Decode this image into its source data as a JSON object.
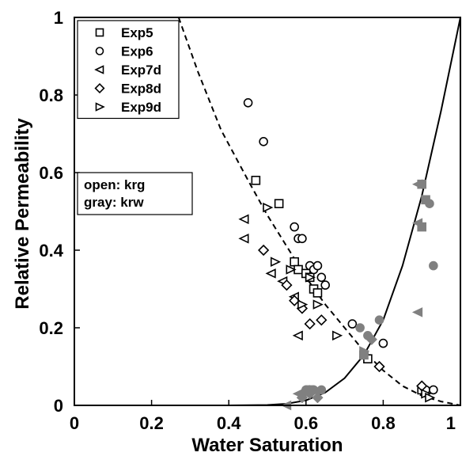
{
  "chart_data": {
    "type": "scatter",
    "xlabel": "Water Saturation",
    "ylabel": "Relative Permeability",
    "xlim": [
      0,
      1
    ],
    "ylim": [
      0,
      1
    ],
    "xticks": [
      "0",
      "0.2",
      "0.4",
      "0.6",
      "0.8",
      "1"
    ],
    "yticks": [
      "0",
      "0.2",
      "0.4",
      "0.6",
      "0.8",
      "1"
    ],
    "xtick_values": [
      0,
      0.2,
      0.4,
      0.6,
      0.8,
      1
    ],
    "ytick_values": [
      0,
      0.2,
      0.4,
      0.6,
      0.8,
      1
    ],
    "grid": false,
    "legend_position": "top-left",
    "colors": {
      "open": "#000000",
      "gray": "#808080",
      "axis": "#000000"
    },
    "notes": [
      "open: krg",
      "gray: krw"
    ],
    "curves": [
      {
        "name": "krg",
        "style": "dashed",
        "points": [
          [
            0.27,
            1.0
          ],
          [
            0.32,
            0.86
          ],
          [
            0.38,
            0.71
          ],
          [
            0.45,
            0.58
          ],
          [
            0.5,
            0.49
          ],
          [
            0.55,
            0.41
          ],
          [
            0.6,
            0.33
          ],
          [
            0.65,
            0.26
          ],
          [
            0.7,
            0.2
          ],
          [
            0.75,
            0.14
          ],
          [
            0.8,
            0.09
          ],
          [
            0.85,
            0.05
          ],
          [
            0.9,
            0.025
          ],
          [
            0.95,
            0.01
          ],
          [
            1.0,
            0.0
          ]
        ]
      },
      {
        "name": "krw",
        "style": "solid",
        "points": [
          [
            0.4,
            0.0
          ],
          [
            0.5,
            0.001
          ],
          [
            0.55,
            0.004
          ],
          [
            0.6,
            0.013
          ],
          [
            0.65,
            0.033
          ],
          [
            0.7,
            0.07
          ],
          [
            0.75,
            0.13
          ],
          [
            0.8,
            0.22
          ],
          [
            0.85,
            0.36
          ],
          [
            0.9,
            0.54
          ],
          [
            0.95,
            0.76
          ],
          [
            1.0,
            1.0
          ]
        ]
      }
    ],
    "series": [
      {
        "name": "Exp5",
        "marker": "square",
        "open": [
          [
            0.47,
            0.58
          ],
          [
            0.53,
            0.52
          ],
          [
            0.57,
            0.37
          ],
          [
            0.58,
            0.35
          ],
          [
            0.6,
            0.34
          ],
          [
            0.61,
            0.33
          ],
          [
            0.62,
            0.3
          ],
          [
            0.63,
            0.29
          ],
          [
            0.75,
            0.13
          ],
          [
            0.76,
            0.12
          ],
          [
            0.9,
            0.04
          ]
        ],
        "gray": [
          [
            0.61,
            0.04
          ],
          [
            0.75,
            0.13
          ],
          [
            0.9,
            0.57
          ],
          [
            0.91,
            0.53
          ],
          [
            0.9,
            0.46
          ]
        ]
      },
      {
        "name": "Exp6",
        "marker": "circle",
        "open": [
          [
            0.45,
            0.78
          ],
          [
            0.49,
            0.68
          ],
          [
            0.57,
            0.46
          ],
          [
            0.58,
            0.43
          ],
          [
            0.59,
            0.43
          ],
          [
            0.61,
            0.36
          ],
          [
            0.62,
            0.35
          ],
          [
            0.63,
            0.36
          ],
          [
            0.64,
            0.33
          ],
          [
            0.65,
            0.31
          ],
          [
            0.72,
            0.21
          ],
          [
            0.8,
            0.16
          ],
          [
            0.91,
            0.04
          ],
          [
            0.93,
            0.04
          ]
        ],
        "gray": [
          [
            0.6,
            0.04
          ],
          [
            0.62,
            0.04
          ],
          [
            0.64,
            0.04
          ],
          [
            0.74,
            0.2
          ],
          [
            0.76,
            0.18
          ],
          [
            0.79,
            0.22
          ],
          [
            0.92,
            0.52
          ],
          [
            0.93,
            0.36
          ]
        ]
      },
      {
        "name": "Exp7d",
        "marker": "triangle-left",
        "open": [
          [
            0.44,
            0.48
          ],
          [
            0.44,
            0.43
          ],
          [
            0.51,
            0.34
          ],
          [
            0.54,
            0.32
          ],
          [
            0.57,
            0.28
          ],
          [
            0.58,
            0.18
          ]
        ],
        "gray": [
          [
            0.55,
            0.0
          ],
          [
            0.58,
            0.03
          ],
          [
            0.89,
            0.57
          ],
          [
            0.89,
            0.47
          ],
          [
            0.89,
            0.24
          ]
        ]
      },
      {
        "name": "Exp8d",
        "marker": "diamond",
        "open": [
          [
            0.49,
            0.4
          ],
          [
            0.55,
            0.31
          ],
          [
            0.57,
            0.27
          ],
          [
            0.59,
            0.25
          ],
          [
            0.61,
            0.21
          ],
          [
            0.64,
            0.22
          ],
          [
            0.79,
            0.1
          ],
          [
            0.9,
            0.05
          ]
        ],
        "gray": [
          [
            0.59,
            0.02
          ],
          [
            0.61,
            0.03
          ],
          [
            0.63,
            0.02
          ],
          [
            0.77,
            0.17
          ]
        ]
      },
      {
        "name": "Exp9d",
        "marker": "triangle-right",
        "open": [
          [
            0.5,
            0.51
          ],
          [
            0.52,
            0.37
          ],
          [
            0.56,
            0.35
          ],
          [
            0.59,
            0.26
          ],
          [
            0.61,
            0.33
          ],
          [
            0.63,
            0.26
          ],
          [
            0.68,
            0.18
          ],
          [
            0.91,
            0.03
          ],
          [
            0.92,
            0.02
          ]
        ],
        "gray": [
          [
            0.6,
            0.03
          ],
          [
            0.62,
            0.04
          ],
          [
            0.75,
            0.14
          ]
        ]
      }
    ]
  }
}
